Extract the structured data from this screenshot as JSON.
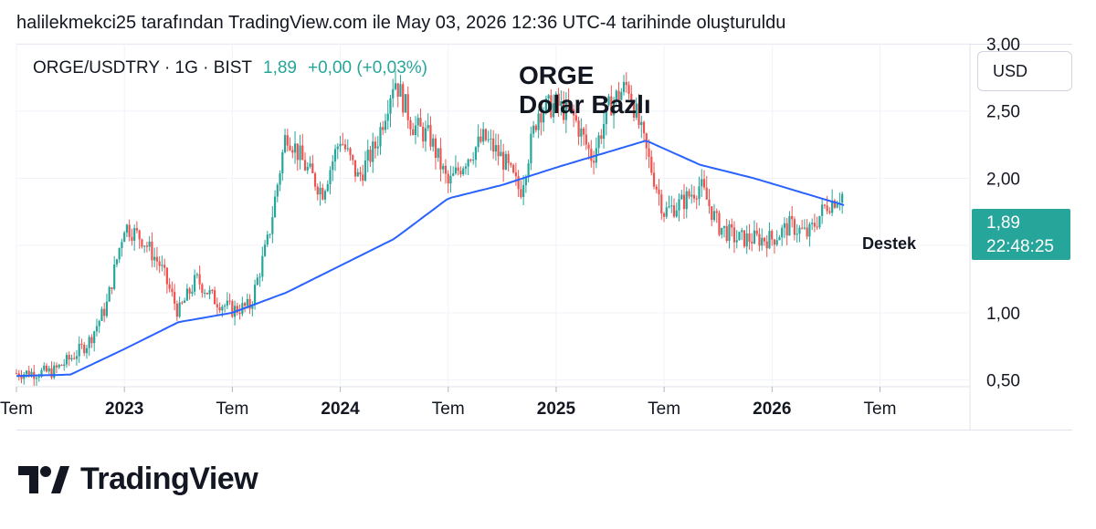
{
  "attribution": "halilekmekci25 tarafından TradingView.com ile May 03, 2026 12:36 UTC-4 tarihinde oluşturuldu",
  "legend": {
    "symbol": "ORGE/USDTRY · 1G · BIST",
    "last": "1,89",
    "change": "+0,00 (+0,03%)"
  },
  "currency_button": "USD",
  "brand": "TradingView",
  "colors": {
    "up": "#26a69a",
    "down": "#ef5350",
    "ma_line": "#2962ff",
    "grid": "#f0f3fa",
    "price_tag_bg": "#26a69a"
  },
  "chart_data": {
    "type": "candlestick",
    "title": "ORGE\nDolar Bazlı",
    "annotation": "Destek",
    "ylim": [
      0.45,
      3.0
    ],
    "y_ticks": [
      "0,50",
      "1,00",
      "1,50",
      "2,00",
      "2,50",
      "3,00"
    ],
    "y_tick_values": [
      0.5,
      1.0,
      1.5,
      2.0,
      2.5,
      3.0
    ],
    "x_ticks": [
      {
        "label": "Tem",
        "date": "2022-07",
        "bold": false
      },
      {
        "label": "2023",
        "date": "2023-01",
        "bold": true
      },
      {
        "label": "Tem",
        "date": "2023-07",
        "bold": false
      },
      {
        "label": "2024",
        "date": "2024-01",
        "bold": true
      },
      {
        "label": "Tem",
        "date": "2024-07",
        "bold": false
      },
      {
        "label": "2025",
        "date": "2025-01",
        "bold": true
      },
      {
        "label": "Tem",
        "date": "2025-07",
        "bold": false
      },
      {
        "label": "2026",
        "date": "2026-01",
        "bold": true
      },
      {
        "label": "Tem",
        "date": "2026-07",
        "bold": false
      }
    ],
    "x_range": [
      "2022-07",
      "2026-12"
    ],
    "price_label": {
      "value": "1,89",
      "time": "22:48:25"
    },
    "price_path": [
      [
        "2022-07",
        0.55
      ],
      [
        "2022-09",
        0.56
      ],
      [
        "2022-10",
        0.66
      ],
      [
        "2022-11",
        0.78
      ],
      [
        "2022-12",
        1.05
      ],
      [
        "2023-01",
        1.65
      ],
      [
        "2023-02",
        1.55
      ],
      [
        "2023-03",
        1.35
      ],
      [
        "2023-04",
        1.0
      ],
      [
        "2023-05",
        1.25
      ],
      [
        "2023-06",
        1.1
      ],
      [
        "2023-07",
        1.02
      ],
      [
        "2023-08",
        1.05
      ],
      [
        "2023-09",
        1.55
      ],
      [
        "2023-10",
        2.35
      ],
      [
        "2023-11",
        2.1
      ],
      [
        "2023-12",
        1.9
      ],
      [
        "2024-01",
        2.3
      ],
      [
        "2024-02",
        2.0
      ],
      [
        "2024-03",
        2.25
      ],
      [
        "2024-04",
        2.75
      ],
      [
        "2024-05",
        2.4
      ],
      [
        "2024-06",
        2.3
      ],
      [
        "2024-07",
        1.95
      ],
      [
        "2024-08",
        2.15
      ],
      [
        "2024-09",
        2.3
      ],
      [
        "2024-10",
        2.15
      ],
      [
        "2024-11",
        1.9
      ],
      [
        "2024-12",
        2.5
      ],
      [
        "2025-01",
        2.55
      ],
      [
        "2025-02",
        2.45
      ],
      [
        "2025-03",
        2.15
      ],
      [
        "2025-04",
        2.55
      ],
      [
        "2025-05",
        2.7
      ],
      [
        "2025-06",
        2.2
      ],
      [
        "2025-07",
        1.75
      ],
      [
        "2025-08",
        1.82
      ],
      [
        "2025-09",
        1.95
      ],
      [
        "2025-10",
        1.65
      ],
      [
        "2025-11",
        1.55
      ],
      [
        "2025-12",
        1.55
      ],
      [
        "2026-01",
        1.55
      ],
      [
        "2026-02",
        1.65
      ],
      [
        "2026-03",
        1.58
      ],
      [
        "2026-04",
        1.8
      ],
      [
        "2026-05",
        1.89
      ]
    ],
    "ma_path": [
      [
        "2022-07",
        0.53
      ],
      [
        "2022-10",
        0.54
      ],
      [
        "2023-01",
        0.73
      ],
      [
        "2023-04",
        0.93
      ],
      [
        "2023-07",
        1.0
      ],
      [
        "2023-10",
        1.15
      ],
      [
        "2024-01",
        1.35
      ],
      [
        "2024-04",
        1.55
      ],
      [
        "2024-07",
        1.85
      ],
      [
        "2024-10",
        1.95
      ],
      [
        "2025-01",
        2.08
      ],
      [
        "2025-04",
        2.2
      ],
      [
        "2025-06",
        2.28
      ],
      [
        "2025-09",
        2.1
      ],
      [
        "2025-12",
        2.0
      ],
      [
        "2026-03",
        1.88
      ],
      [
        "2026-05",
        1.8
      ]
    ]
  }
}
